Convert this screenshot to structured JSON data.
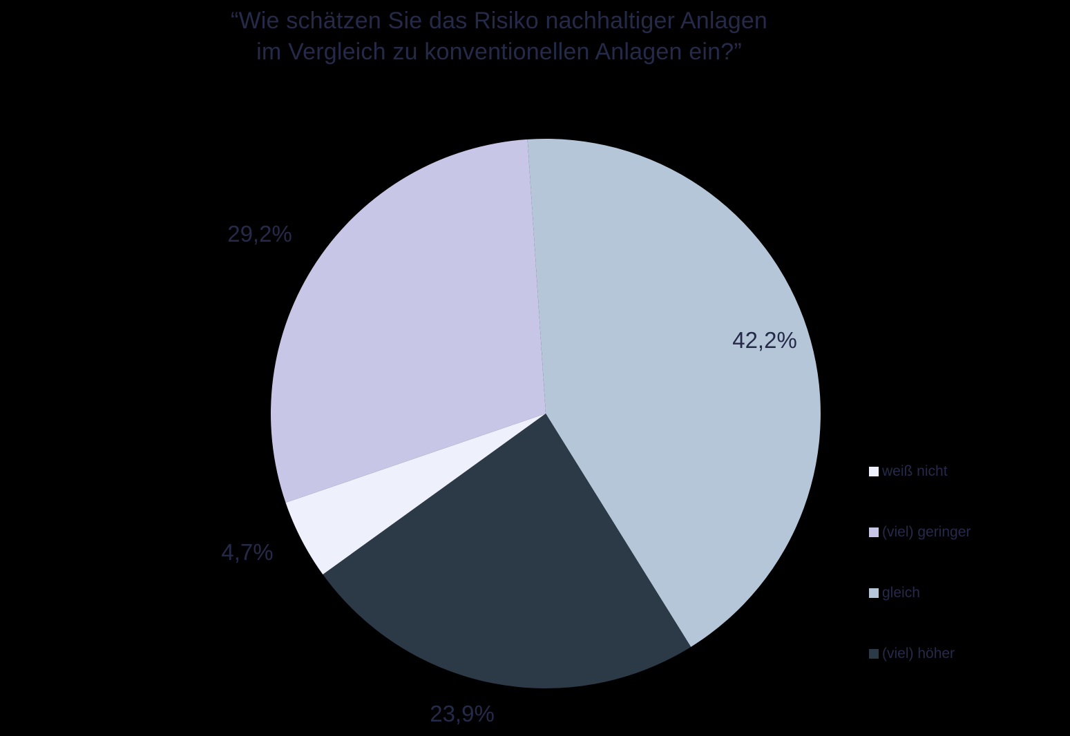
{
  "title": {
    "line1": "“Wie schätzen Sie das Risiko nachhaltiger Anlagen",
    "line2": "im Vergleich zu konventionellen Anlagen ein?”"
  },
  "colors": {
    "background": "#000000",
    "text": "#262a49"
  },
  "chart_data": {
    "type": "pie",
    "title": "“Wie schätzen Sie das Risiko nachhaltiger Anlagen im Vergleich zu konventionellen Anlagen ein?”",
    "number_format": "de-DE",
    "legend_position": "right",
    "slices": [
      {
        "id": "weiss-nicht",
        "label": "weiß nicht",
        "value": 4.7,
        "display": "4,7%",
        "color": "#eef0fc"
      },
      {
        "id": "viel-geringer",
        "label": "(viel) geringer",
        "value": 29.2,
        "display": "29,2%",
        "color": "#c8c6e6"
      },
      {
        "id": "gleich",
        "label": "gleich",
        "value": 42.2,
        "display": "42,2%",
        "color": "#b4c6d8"
      },
      {
        "id": "viel-hoeher",
        "label": "(viel) höher",
        "value": 23.9,
        "display": "23,9%",
        "color": "#2c3947"
      }
    ],
    "draw": {
      "start_angle_deg": -3.8,
      "direction": "clockwise",
      "order": [
        "gleich",
        "viel-hoeher",
        "weiss-nicht",
        "viel-geringer"
      ]
    }
  }
}
